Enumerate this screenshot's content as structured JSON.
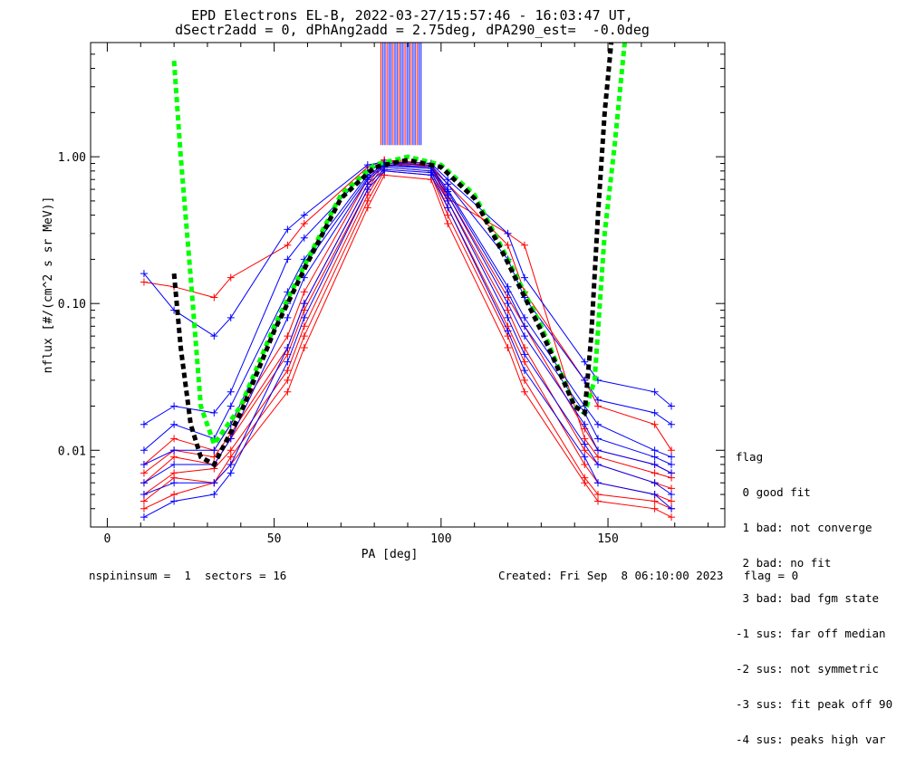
{
  "title_line1": "EPD Electrons EL-B, 2022-03-27/15:57:46 - 16:03:47 UT,",
  "title_line2": "dSectr2add = 0, dPhAng2add = 2.75deg, dPA290_est=  -0.0deg",
  "footer_left": "nspininsum =  1  sectors = 16",
  "footer_right": "Created: Fri Sep  8 06:10:00 2023   flag = 0",
  "legend": {
    "title": "flag",
    "items": [
      " 0 good fit",
      " 1 bad: not converge",
      " 2 bad: no fit",
      " 3 bad: bad fgm state",
      "-1 sus: far off median",
      "-2 sus: not symmetric",
      "-3 sus: fit peak off 90",
      "-4 sus: peaks high var"
    ]
  },
  "colors": {
    "red": "#ff0000",
    "blue": "#0000ff",
    "green": "#00ff00",
    "black": "#000000"
  },
  "chart_data": {
    "type": "line",
    "xlabel": "PA [deg]",
    "ylabel": "nflux [#/(cm^2 s sr MeV)]",
    "xlim": [
      -5,
      185
    ],
    "ylim": [
      0.003,
      6.0
    ],
    "yscale": "log",
    "xticks": [
      0,
      50,
      100,
      150
    ],
    "xtick_labels": [
      "0",
      "50",
      "100",
      "150"
    ],
    "yticks": [
      0.01,
      0.1,
      1.0
    ],
    "ytick_labels": [
      "0.01",
      "0.10",
      "1.00"
    ],
    "pa_bins": [
      11,
      20,
      32,
      37,
      54,
      59,
      78,
      83,
      97,
      102,
      120,
      125,
      143,
      147,
      164,
      169
    ],
    "spectra": [
      {
        "color": "red",
        "values": [
          0.005,
          0.007,
          0.0075,
          0.01,
          0.035,
          0.07,
          0.55,
          0.85,
          0.8,
          0.45,
          0.07,
          0.04,
          0.008,
          0.006,
          0.005,
          0.0045
        ]
      },
      {
        "color": "red",
        "values": [
          0.006,
          0.009,
          0.008,
          0.012,
          0.045,
          0.09,
          0.6,
          0.9,
          0.85,
          0.5,
          0.09,
          0.05,
          0.01,
          0.008,
          0.006,
          0.0055
        ]
      },
      {
        "color": "red",
        "values": [
          0.0045,
          0.0065,
          0.006,
          0.009,
          0.03,
          0.06,
          0.5,
          0.8,
          0.75,
          0.4,
          0.06,
          0.03,
          0.0065,
          0.005,
          0.0045,
          0.004
        ]
      },
      {
        "color": "red",
        "values": [
          0.14,
          0.13,
          0.11,
          0.15,
          0.25,
          0.35,
          0.85,
          0.95,
          0.85,
          0.65,
          0.25,
          0.12,
          0.03,
          0.02,
          0.015,
          0.01
        ]
      },
      {
        "color": "red",
        "values": [
          0.008,
          0.012,
          0.01,
          0.015,
          0.06,
          0.12,
          0.7,
          0.95,
          0.9,
          0.55,
          0.11,
          0.07,
          0.014,
          0.01,
          0.008,
          0.007
        ]
      },
      {
        "color": "red",
        "values": [
          0.004,
          0.005,
          0.006,
          0.008,
          0.025,
          0.05,
          0.45,
          0.75,
          0.7,
          0.35,
          0.05,
          0.025,
          0.006,
          0.0045,
          0.004,
          0.0035
        ]
      },
      {
        "color": "red",
        "values": [
          0.007,
          0.01,
          0.009,
          0.013,
          0.05,
          0.1,
          0.65,
          0.92,
          0.87,
          0.52,
          0.3,
          0.25,
          0.012,
          0.009,
          0.007,
          0.0065
        ]
      },
      {
        "color": "blue",
        "values": [
          0.006,
          0.008,
          0.008,
          0.012,
          0.08,
          0.15,
          0.7,
          0.85,
          0.8,
          0.55,
          0.1,
          0.06,
          0.015,
          0.01,
          0.008,
          0.007
        ]
      },
      {
        "color": "blue",
        "values": [
          0.01,
          0.015,
          0.012,
          0.02,
          0.12,
          0.2,
          0.75,
          0.88,
          0.85,
          0.6,
          0.13,
          0.08,
          0.02,
          0.015,
          0.01,
          0.009
        ]
      },
      {
        "color": "blue",
        "values": [
          0.005,
          0.006,
          0.006,
          0.008,
          0.05,
          0.1,
          0.65,
          0.82,
          0.78,
          0.5,
          0.08,
          0.045,
          0.011,
          0.008,
          0.006,
          0.005
        ]
      },
      {
        "color": "blue",
        "values": [
          0.16,
          0.09,
          0.06,
          0.08,
          0.32,
          0.4,
          0.88,
          0.92,
          0.9,
          0.7,
          0.3,
          0.15,
          0.04,
          0.03,
          0.025,
          0.02
        ]
      },
      {
        "color": "blue",
        "values": [
          0.015,
          0.02,
          0.018,
          0.025,
          0.2,
          0.28,
          0.8,
          0.9,
          0.88,
          0.65,
          0.2,
          0.11,
          0.03,
          0.022,
          0.018,
          0.015
        ]
      },
      {
        "color": "blue",
        "values": [
          0.0035,
          0.0045,
          0.005,
          0.007,
          0.04,
          0.08,
          0.6,
          0.8,
          0.75,
          0.45,
          0.065,
          0.035,
          0.009,
          0.006,
          0.005,
          0.004
        ]
      },
      {
        "color": "blue",
        "values": [
          0.008,
          0.01,
          0.01,
          0.015,
          0.1,
          0.18,
          0.72,
          0.87,
          0.83,
          0.58,
          0.12,
          0.07,
          0.018,
          0.012,
          0.009,
          0.008
        ]
      }
    ],
    "fits": [
      {
        "color": "green",
        "style": "dashed",
        "x": [
          20,
          22,
          25,
          28,
          32,
          40,
          50,
          60,
          70,
          80,
          90,
          100,
          110,
          120,
          130,
          140,
          143,
          146,
          149,
          152,
          155
        ],
        "y": [
          4.5,
          1.0,
          0.15,
          0.02,
          0.011,
          0.02,
          0.07,
          0.2,
          0.55,
          0.88,
          1.0,
          0.88,
          0.55,
          0.2,
          0.07,
          0.02,
          0.018,
          0.03,
          0.3,
          1.2,
          6.0
        ]
      },
      {
        "color": "black",
        "style": "dashed",
        "x": [
          20,
          22,
          25,
          28,
          32,
          40,
          50,
          60,
          70,
          80,
          90,
          100,
          110,
          120,
          130,
          140,
          143,
          145,
          147,
          149,
          151
        ],
        "y": [
          0.16,
          0.05,
          0.015,
          0.009,
          0.008,
          0.018,
          0.065,
          0.19,
          0.52,
          0.85,
          0.95,
          0.85,
          0.52,
          0.19,
          0.065,
          0.02,
          0.018,
          0.06,
          0.4,
          2.0,
          6.0
        ]
      }
    ],
    "saturated_column": {
      "x_start": 82,
      "x_end": 94,
      "y_from": 1.2,
      "y_to": 6.0
    }
  }
}
